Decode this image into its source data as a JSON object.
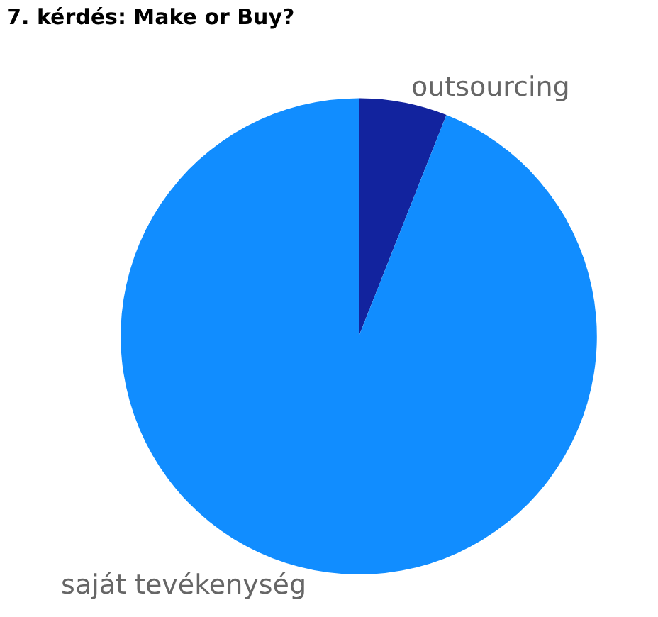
{
  "chart_data": {
    "type": "pie",
    "title": "7. kérdés: Make or Buy?",
    "categories": [
      "outsourcing",
      "saját tevékenység"
    ],
    "values": [
      6,
      94
    ],
    "colors": [
      "#12239e",
      "#118dff"
    ],
    "legend": false
  }
}
